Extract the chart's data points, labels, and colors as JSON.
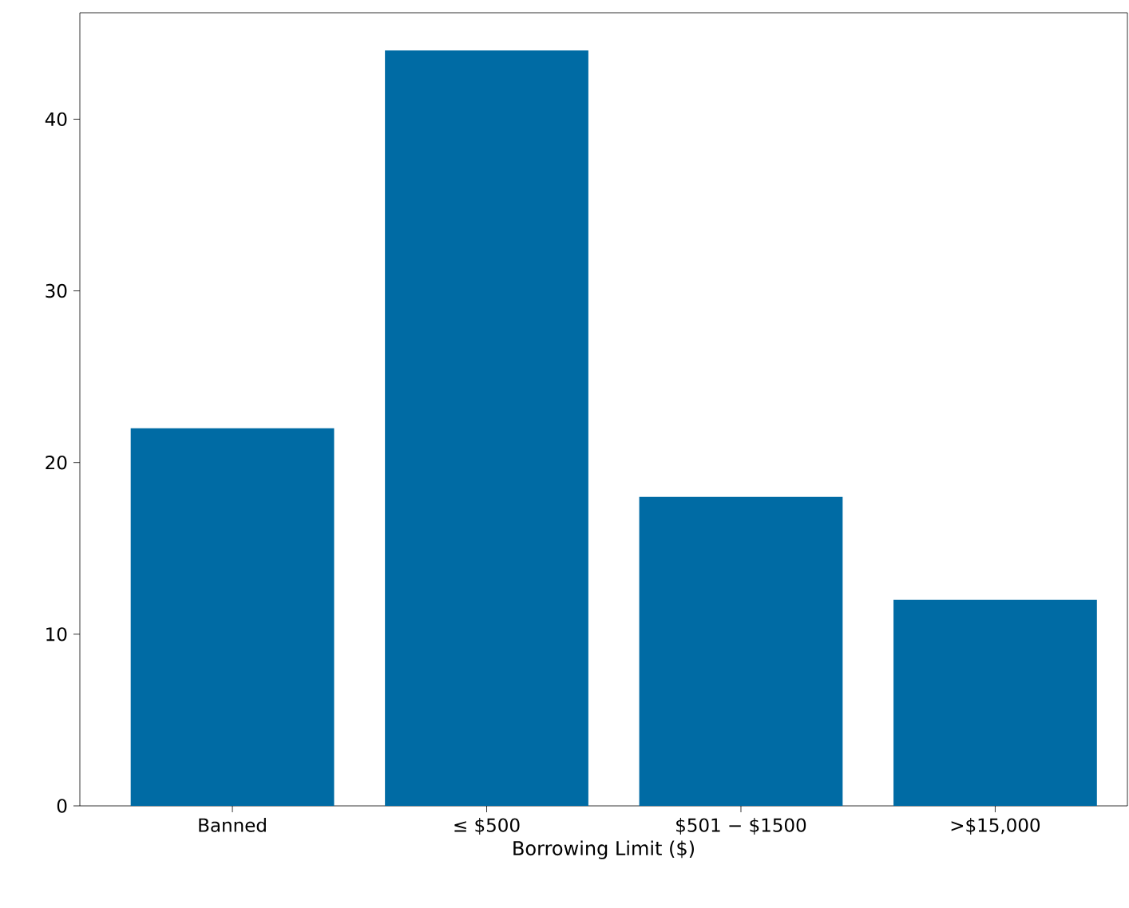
{
  "chart_data": {
    "type": "bar",
    "xlabel": "Borrowing Limit ($)",
    "categories": [
      "Banned",
      "≤ $500",
      "$501 − $1500",
      ">$15,000"
    ],
    "values": [
      22,
      44,
      18,
      12
    ],
    "color": "#006ba4",
    "ylim": [
      0,
      46.2
    ],
    "yticks": [
      0,
      10,
      20,
      30,
      40
    ],
    "grid": false
  }
}
